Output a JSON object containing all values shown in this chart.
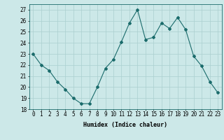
{
  "x": [
    0,
    1,
    2,
    3,
    4,
    5,
    6,
    7,
    8,
    9,
    10,
    11,
    12,
    13,
    14,
    15,
    16,
    17,
    18,
    19,
    20,
    21,
    22,
    23
  ],
  "y": [
    23,
    22,
    21.5,
    20.5,
    19.8,
    19.0,
    18.5,
    18.5,
    20.0,
    21.7,
    22.5,
    24.1,
    25.8,
    27.0,
    24.3,
    24.5,
    25.8,
    25.3,
    26.3,
    25.2,
    22.8,
    21.9,
    20.5,
    19.5
  ],
  "line_color": "#1a6b6b",
  "marker": "D",
  "marker_size": 2,
  "bg_color": "#cce8e8",
  "grid_color": "#aacfcf",
  "xlabel": "Humidex (Indice chaleur)",
  "ylim": [
    18,
    27.5
  ],
  "xlim": [
    -0.5,
    23.5
  ],
  "yticks": [
    18,
    19,
    20,
    21,
    22,
    23,
    24,
    25,
    26,
    27
  ],
  "xticks": [
    0,
    1,
    2,
    3,
    4,
    5,
    6,
    7,
    8,
    9,
    10,
    11,
    12,
    13,
    14,
    15,
    16,
    17,
    18,
    19,
    20,
    21,
    22,
    23
  ],
  "label_fontsize": 6,
  "tick_fontsize": 5.5
}
